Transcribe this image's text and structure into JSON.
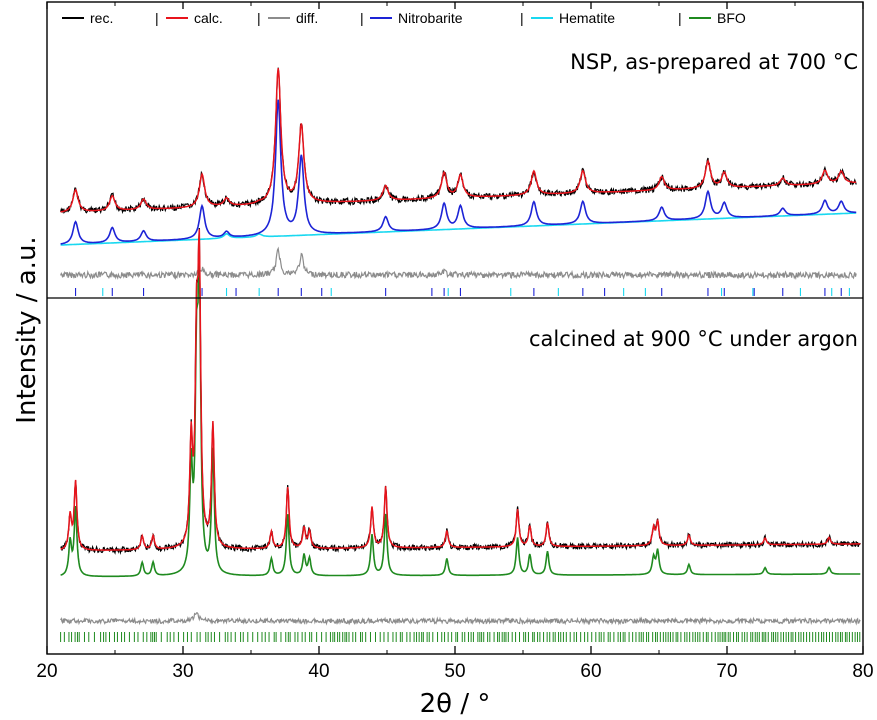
{
  "chart_data": {
    "type": "line",
    "xlabel": "2θ / °",
    "ylabel": "Intensity / a.u.",
    "xlim": [
      20,
      80
    ],
    "xticks": [
      20,
      30,
      40,
      50,
      60,
      70,
      80
    ],
    "legend": {
      "placement": "top",
      "entries": [
        {
          "label": "rec.",
          "color": "#000000"
        },
        {
          "label": "calc.",
          "color": "#e8141c"
        },
        {
          "label": "diff.",
          "color": "#8c8c8c"
        },
        {
          "label": "Nitrobarite",
          "color": "#1d24d6"
        },
        {
          "label": "Hematite",
          "color": "#19d8f0"
        },
        {
          "label": "BFO",
          "color": "#1f8a1f"
        }
      ],
      "separator": "|"
    },
    "panels": [
      {
        "id": "top",
        "title": "NSP, as-prepared at 700 °C",
        "series": [
          "rec.",
          "calc.",
          "diff.",
          "Nitrobarite",
          "Hematite"
        ],
        "nitrobarite_peaks": [
          {
            "x": 22.1,
            "h": 0.15
          },
          {
            "x": 24.8,
            "h": 0.1
          },
          {
            "x": 27.1,
            "h": 0.07
          },
          {
            "x": 31.4,
            "h": 0.22
          },
          {
            "x": 33.2,
            "h": 0.04
          },
          {
            "x": 37.0,
            "h": 0.9
          },
          {
            "x": 38.7,
            "h": 0.52
          },
          {
            "x": 44.9,
            "h": 0.1
          },
          {
            "x": 49.2,
            "h": 0.17
          },
          {
            "x": 50.4,
            "h": 0.15
          },
          {
            "x": 55.8,
            "h": 0.16
          },
          {
            "x": 59.4,
            "h": 0.15
          },
          {
            "x": 65.2,
            "h": 0.09
          },
          {
            "x": 68.6,
            "h": 0.18
          },
          {
            "x": 69.8,
            "h": 0.1
          },
          {
            "x": 74.1,
            "h": 0.05
          },
          {
            "x": 77.2,
            "h": 0.09
          },
          {
            "x": 78.4,
            "h": 0.08
          }
        ],
        "hematite_peaks": [
          {
            "x": 33.2,
            "h": 0.03
          },
          {
            "x": 35.6,
            "h": 0.02
          }
        ],
        "nitrobarite_ticks": [
          22.1,
          24.8,
          27.1,
          31.4,
          33.9,
          37.0,
          38.7,
          40.2,
          44.9,
          48.3,
          49.2,
          50.4,
          55.8,
          59.4,
          61.0,
          65.2,
          68.6,
          69.8,
          72.0,
          74.1,
          77.2,
          78.4
        ],
        "hematite_ticks": [
          24.1,
          33.2,
          35.6,
          40.9,
          49.5,
          54.1,
          57.6,
          62.4,
          64.0,
          69.6,
          71.9,
          75.4,
          77.7,
          79.0
        ]
      },
      {
        "id": "bottom",
        "title": "calcined at 900 °C under argon",
        "series": [
          "rec.",
          "calc.",
          "diff.",
          "BFO"
        ],
        "bfo_peaks": [
          {
            "x": 21.7,
            "h": 0.1
          },
          {
            "x": 22.1,
            "h": 0.2
          },
          {
            "x": 27.0,
            "h": 0.04
          },
          {
            "x": 27.8,
            "h": 0.04
          },
          {
            "x": 30.6,
            "h": 0.3
          },
          {
            "x": 31.0,
            "h": 0.55
          },
          {
            "x": 31.2,
            "h": 0.78
          },
          {
            "x": 32.2,
            "h": 0.36
          },
          {
            "x": 36.5,
            "h": 0.05
          },
          {
            "x": 37.7,
            "h": 0.18
          },
          {
            "x": 38.9,
            "h": 0.06
          },
          {
            "x": 39.3,
            "h": 0.05
          },
          {
            "x": 43.9,
            "h": 0.12
          },
          {
            "x": 44.9,
            "h": 0.18
          },
          {
            "x": 49.4,
            "h": 0.05
          },
          {
            "x": 54.6,
            "h": 0.11
          },
          {
            "x": 55.5,
            "h": 0.06
          },
          {
            "x": 56.8,
            "h": 0.07
          },
          {
            "x": 64.6,
            "h": 0.05
          },
          {
            "x": 64.9,
            "h": 0.07
          },
          {
            "x": 67.2,
            "h": 0.03
          },
          {
            "x": 72.8,
            "h": 0.02
          },
          {
            "x": 77.5,
            "h": 0.02
          }
        ]
      }
    ]
  }
}
